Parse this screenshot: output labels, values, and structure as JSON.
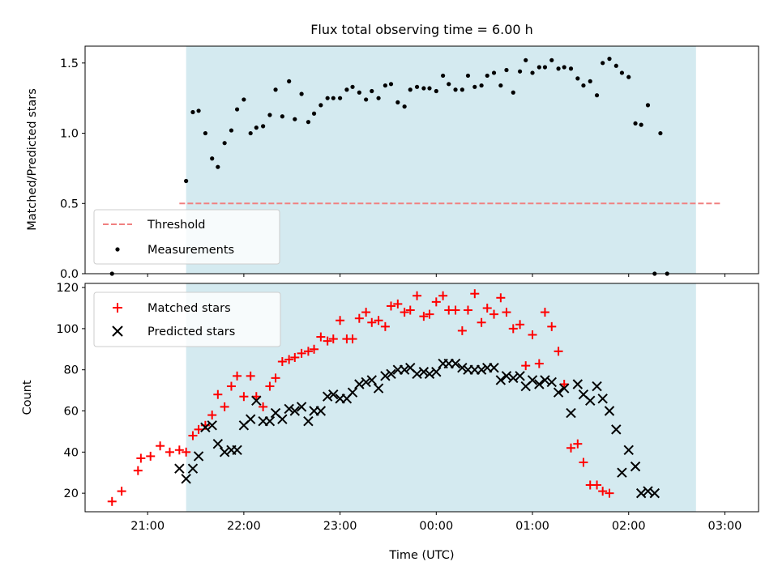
{
  "figure": {
    "title": "Flux total observing time = 6.00 h",
    "colors": {
      "band": "#d4eaf0",
      "threshold": "#f08080",
      "matched": "#ff0000",
      "predicted": "#000000",
      "measurement": "#000000"
    }
  },
  "chart_data": [
    {
      "type": "scatter",
      "panel": "top",
      "title": "Flux total observing time = 6.00 h",
      "xlabel": "",
      "ylabel": "Matched/Predicted stars",
      "xlim": [
        -3.65,
        3.35
      ],
      "ylim": [
        0,
        1.62
      ],
      "yticks": [
        0.0,
        0.5,
        1.0,
        1.5
      ],
      "ytick_labels": [
        "0.0",
        "0.5",
        "1.0",
        "1.5"
      ],
      "observing_window": [
        -2.6,
        2.7
      ],
      "legend": {
        "position": "lower-left",
        "entries": [
          "Threshold",
          "Measurements"
        ]
      },
      "threshold": {
        "name": "Threshold",
        "y": 0.5,
        "x": [
          -2.67,
          2.97
        ],
        "style": "dashed"
      },
      "measurements": {
        "name": "Measurements",
        "x": [
          -3.37,
          -2.6,
          -2.53,
          -2.47,
          -2.4,
          -2.33,
          -2.27,
          -2.2,
          -2.13,
          -2.07,
          -2.0,
          -1.93,
          -1.87,
          -1.8,
          -1.73,
          -1.67,
          -1.6,
          -1.53,
          -1.47,
          -1.4,
          -1.33,
          -1.27,
          -1.2,
          -1.13,
          -1.07,
          -1.0,
          -0.93,
          -0.87,
          -0.8,
          -0.73,
          -0.67,
          -0.6,
          -0.53,
          -0.47,
          -0.4,
          -0.33,
          -0.27,
          -0.2,
          -0.13,
          -0.07,
          0.0,
          0.07,
          0.13,
          0.2,
          0.27,
          0.33,
          0.4,
          0.47,
          0.53,
          0.6,
          0.67,
          0.73,
          0.8,
          0.87,
          0.93,
          1.0,
          1.07,
          1.13,
          1.2,
          1.27,
          1.33,
          1.4,
          1.47,
          1.53,
          1.6,
          1.67,
          1.73,
          1.8,
          1.87,
          1.93,
          2.0,
          2.07,
          2.13,
          2.2,
          2.27,
          2.33,
          2.4,
          2.47,
          2.53,
          2.6,
          2.67,
          2.73,
          2.8,
          2.87,
          2.93
        ],
        "y": [
          0.0,
          0.66,
          1.15,
          1.16,
          1.0,
          0.82,
          0.76,
          0.93,
          1.02,
          1.17,
          1.24,
          1.0,
          1.04,
          1.05,
          1.13,
          1.31,
          1.12,
          1.37,
          1.1,
          1.28,
          1.08,
          1.14,
          1.2,
          1.25,
          1.25,
          1.25,
          1.31,
          1.33,
          1.29,
          1.24,
          1.3,
          1.25,
          1.34,
          1.35,
          1.22,
          1.19,
          1.31,
          1.33,
          1.32,
          1.32,
          1.3,
          1.41,
          1.35,
          1.31,
          1.31,
          1.41,
          1.33,
          1.34,
          1.41,
          1.43,
          1.34,
          1.45,
          1.29,
          1.44,
          1.52,
          1.43,
          1.47,
          1.47,
          1.52,
          1.46,
          1.47,
          1.46,
          1.39,
          1.34,
          1.37,
          1.27,
          1.5,
          1.53,
          1.48,
          1.43,
          1.4,
          1.07,
          1.06,
          1.2,
          0.0,
          1.0,
          0.0,
          null,
          null,
          null,
          null,
          null,
          null,
          null,
          null
        ]
      }
    },
    {
      "type": "scatter",
      "panel": "bottom",
      "title": "",
      "xlabel": "Time (UTC)",
      "ylabel": "Count",
      "xlim": [
        -3.65,
        3.35
      ],
      "ylim": [
        11,
        122
      ],
      "yticks": [
        20,
        40,
        60,
        80,
        100,
        120
      ],
      "xticks": [
        -3,
        -2,
        -1,
        0,
        1,
        2,
        3
      ],
      "xtick_labels": [
        "21:00",
        "22:00",
        "23:00",
        "00:00",
        "01:00",
        "02:00",
        "03:00"
      ],
      "observing_window": [
        -2.6,
        2.7
      ],
      "legend": {
        "position": "top-left",
        "entries": [
          "Matched stars",
          "Predicted stars"
        ]
      },
      "series": [
        {
          "name": "Matched stars",
          "marker": "plus",
          "x": [
            -3.37,
            -3.27,
            -3.1,
            -3.07,
            -2.97,
            -2.87,
            -2.77,
            -2.67,
            -2.6,
            -2.53,
            -2.47,
            -2.4,
            -2.33,
            -2.27,
            -2.2,
            -2.13,
            -2.07,
            -2.0,
            -1.93,
            -1.87,
            -1.8,
            -1.73,
            -1.67,
            -1.6,
            -1.53,
            -1.47,
            -1.4,
            -1.33,
            -1.27,
            -1.2,
            -1.13,
            -1.07,
            -1.0,
            -0.93,
            -0.87,
            -0.8,
            -0.73,
            -0.67,
            -0.6,
            -0.53,
            -0.47,
            -0.4,
            -0.33,
            -0.27,
            -0.2,
            -0.13,
            -0.07,
            0.0,
            0.07,
            0.13,
            0.2,
            0.27,
            0.33,
            0.4,
            0.47,
            0.53,
            0.6,
            0.67,
            0.73,
            0.8,
            0.87,
            0.93,
            1.0,
            1.07,
            1.13,
            1.2,
            1.27,
            1.33,
            1.4,
            1.47,
            1.53,
            1.6,
            1.67,
            1.73,
            1.8,
            1.87,
            1.93,
            2.0,
            2.07,
            2.13,
            2.2,
            2.27,
            2.33,
            2.4,
            2.47,
            2.53,
            2.6,
            2.67,
            2.73,
            2.8,
            2.87,
            2.93
          ],
          "y": [
            16,
            21,
            31,
            37,
            38,
            43,
            40,
            41,
            40,
            48,
            51,
            53,
            58,
            68,
            62,
            72,
            77,
            67,
            77,
            67,
            62,
            72,
            76,
            84,
            85,
            86,
            88,
            89,
            90,
            96,
            94,
            95,
            104,
            95,
            95,
            105,
            108,
            103,
            104,
            101,
            111,
            112,
            108,
            109,
            116,
            106,
            107,
            113,
            116,
            109,
            109,
            99,
            109,
            117,
            103,
            110,
            107,
            115,
            108,
            100,
            102,
            82,
            97,
            83,
            108,
            101,
            89,
            73,
            42,
            44,
            35,
            24,
            24,
            21,
            20,
            null,
            null,
            null,
            null,
            null,
            null,
            null,
            null,
            null,
            null,
            null,
            null,
            null,
            null,
            null,
            null,
            null
          ]
        },
        {
          "name": "Predicted stars",
          "marker": "x",
          "x": [
            -2.67,
            -2.6,
            -2.53,
            -2.47,
            -2.4,
            -2.33,
            -2.27,
            -2.2,
            -2.13,
            -2.07,
            -2.0,
            -1.93,
            -1.87,
            -1.8,
            -1.73,
            -1.67,
            -1.6,
            -1.53,
            -1.47,
            -1.4,
            -1.33,
            -1.27,
            -1.2,
            -1.13,
            -1.07,
            -1.0,
            -0.93,
            -0.87,
            -0.8,
            -0.73,
            -0.67,
            -0.6,
            -0.53,
            -0.47,
            -0.4,
            -0.33,
            -0.27,
            -0.2,
            -0.13,
            -0.07,
            0.0,
            0.07,
            0.13,
            0.2,
            0.27,
            0.33,
            0.4,
            0.47,
            0.53,
            0.6,
            0.67,
            0.73,
            0.8,
            0.87,
            0.93,
            1.0,
            1.07,
            1.13,
            1.2,
            1.27,
            1.33,
            1.4,
            1.47,
            1.53,
            1.6,
            1.67,
            1.73,
            1.8,
            1.87,
            1.93,
            2.0,
            2.07,
            2.13,
            2.2,
            2.27,
            2.33,
            2.4,
            2.47,
            2.53,
            2.6,
            2.67,
            2.73,
            2.8,
            2.87,
            2.93
          ],
          "y": [
            32,
            27,
            32,
            38,
            52,
            53,
            44,
            40,
            41,
            41,
            53,
            56,
            65,
            55,
            55,
            59,
            56,
            61,
            60,
            62,
            55,
            60,
            60,
            67,
            68,
            66,
            66,
            69,
            73,
            74,
            75,
            71,
            77,
            78,
            80,
            80,
            81,
            78,
            79,
            78,
            79,
            83,
            83,
            83,
            81,
            80,
            80,
            80,
            81,
            81,
            75,
            77,
            76,
            77,
            72,
            75,
            73,
            75,
            74,
            69,
            71,
            59,
            73,
            68,
            65,
            72,
            66,
            60,
            51,
            30,
            41,
            33,
            20,
            21,
            20,
            null,
            null,
            null,
            null,
            null,
            null,
            null,
            null,
            null,
            null
          ]
        }
      ]
    }
  ]
}
